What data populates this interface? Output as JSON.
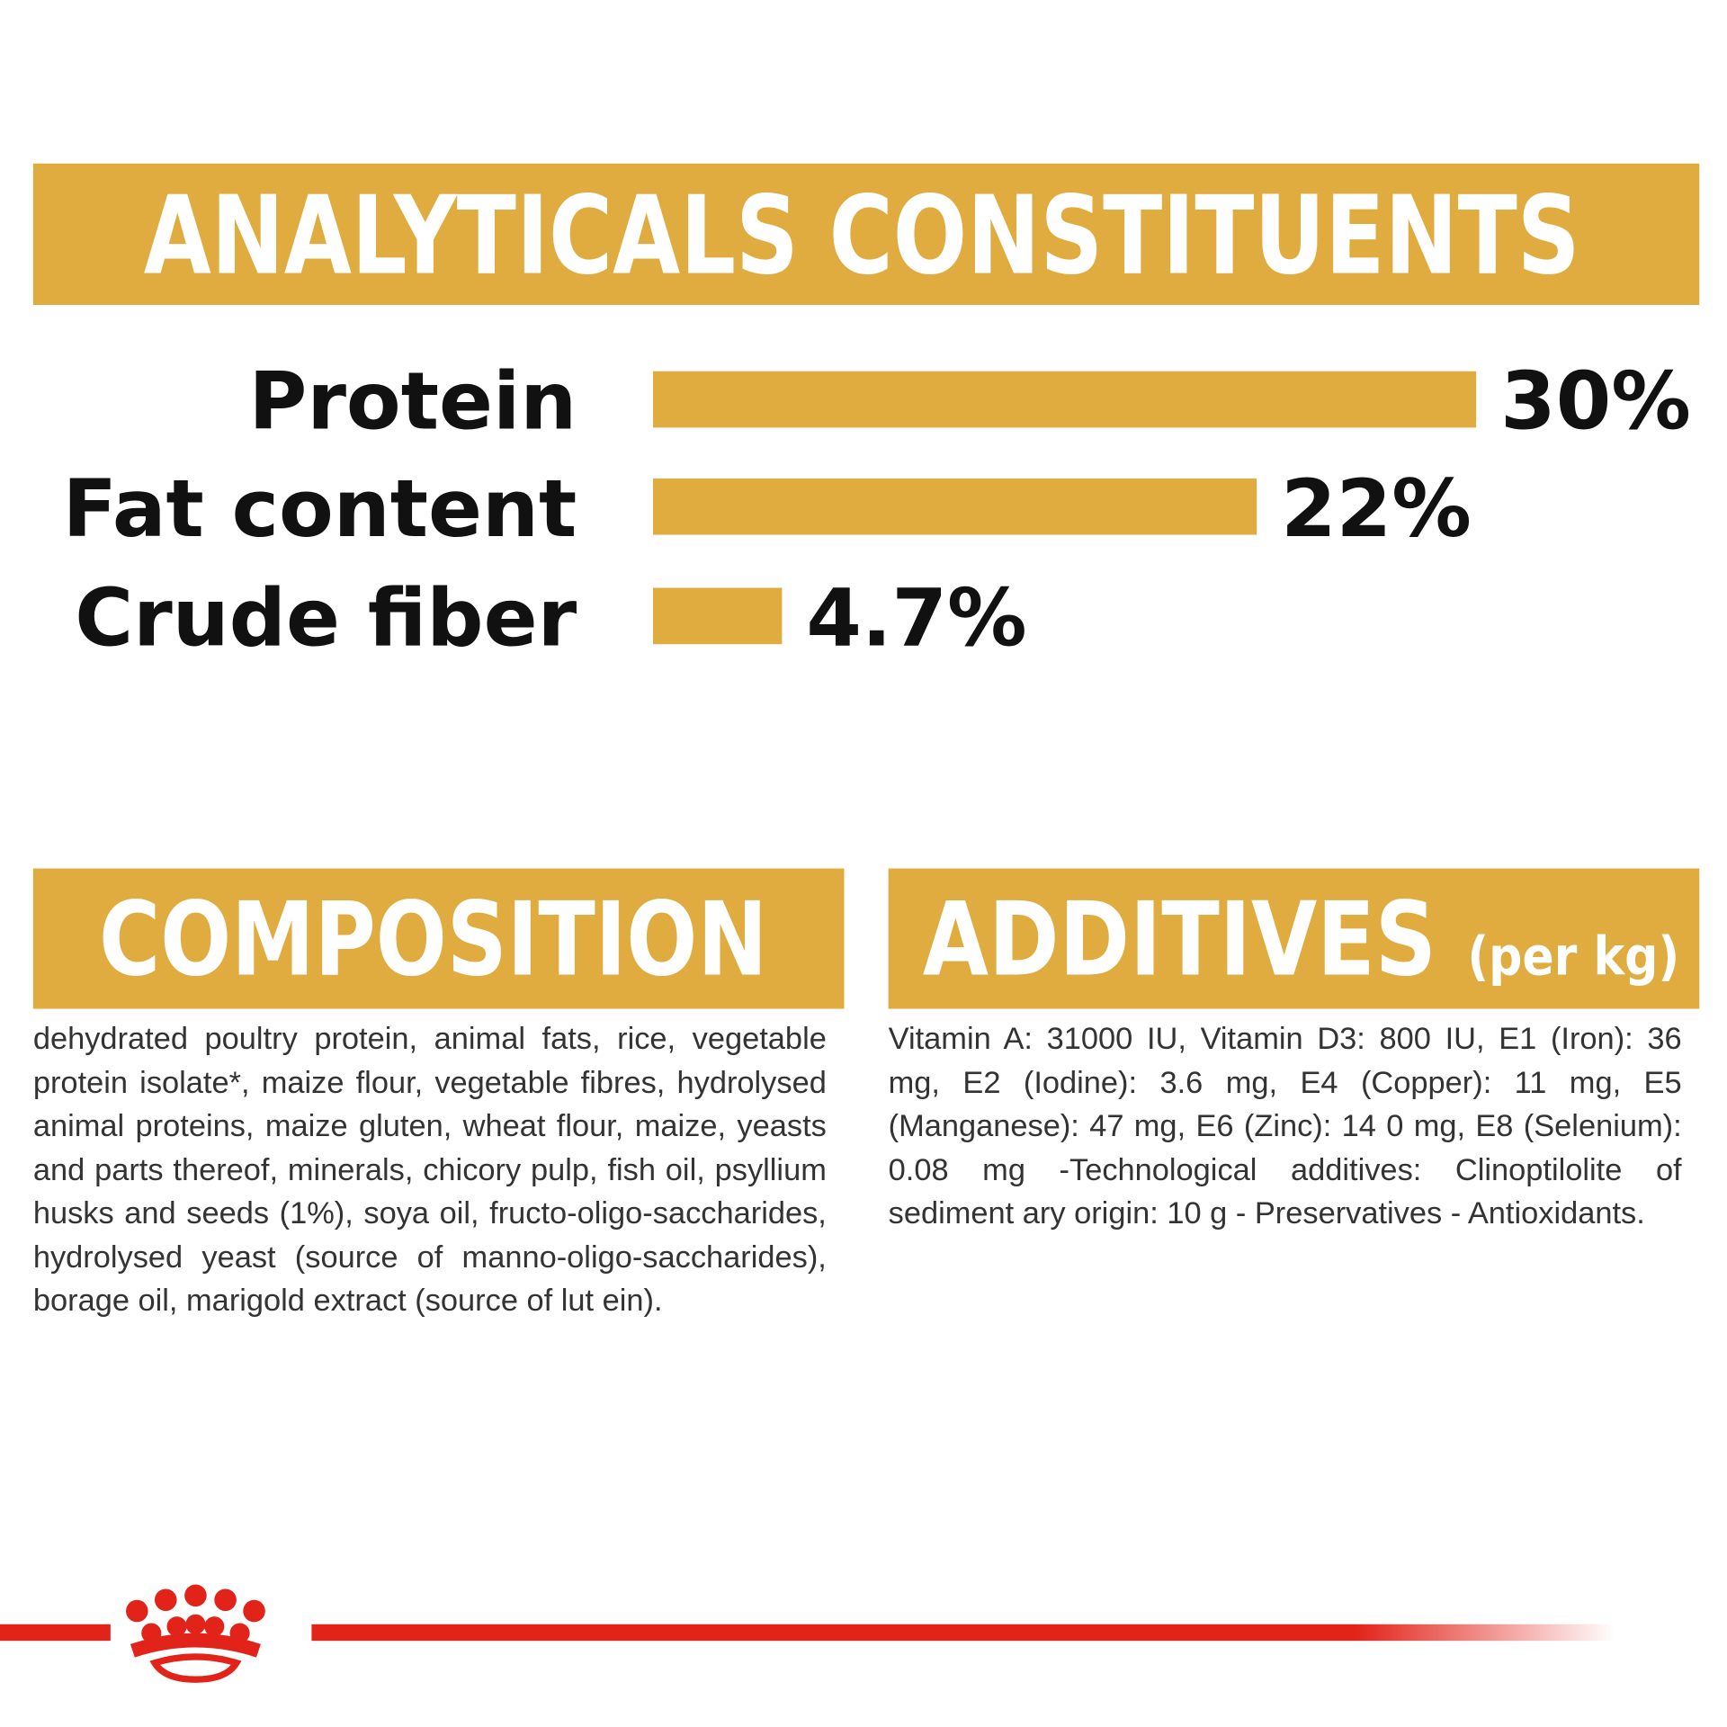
{
  "analytics": {
    "title": "ANALYTICALS CONSTITUENTS",
    "categories": [
      "Protein",
      "Fat content",
      "Crude fiber"
    ],
    "values": [
      30,
      22,
      4.7
    ],
    "value_labels": [
      "30%",
      "22%",
      "4.7%"
    ],
    "color": "#e0ac40"
  },
  "composition": {
    "title": "COMPOSITION",
    "text": "dehydrated poultry protein, animal fats, rice, vegetable protein isolate*, maize flour, vegetable fibres, hydrolysed animal proteins, maize gluten, wheat flour, maize, yeasts and parts thereof, minerals, chicory pulp, fish oil, psyllium husks and seeds (1%), soya oil, fructo-oligo-saccharides, hydrolysed yeast (source of manno-oligo-saccharides), borage oil, marigold extract (source of lut ein)."
  },
  "additives": {
    "title": "ADDITIVES",
    "unit": "(per kg)",
    "text": "Vitamin A: 31000 IU, Vitamin D3: 800 IU, E1 (Iron): 36 mg, E2 (Iodine): 3.6 mg, E4 (Copper): 11 mg, E5 (Manganese): 47 mg, E6 (Zinc): 14 0 mg, E8 (Selenium): 0.08 mg -Technological additives: Clinoptilolite of sediment ary origin: 10 g - Preservatives - Antioxidants."
  }
}
